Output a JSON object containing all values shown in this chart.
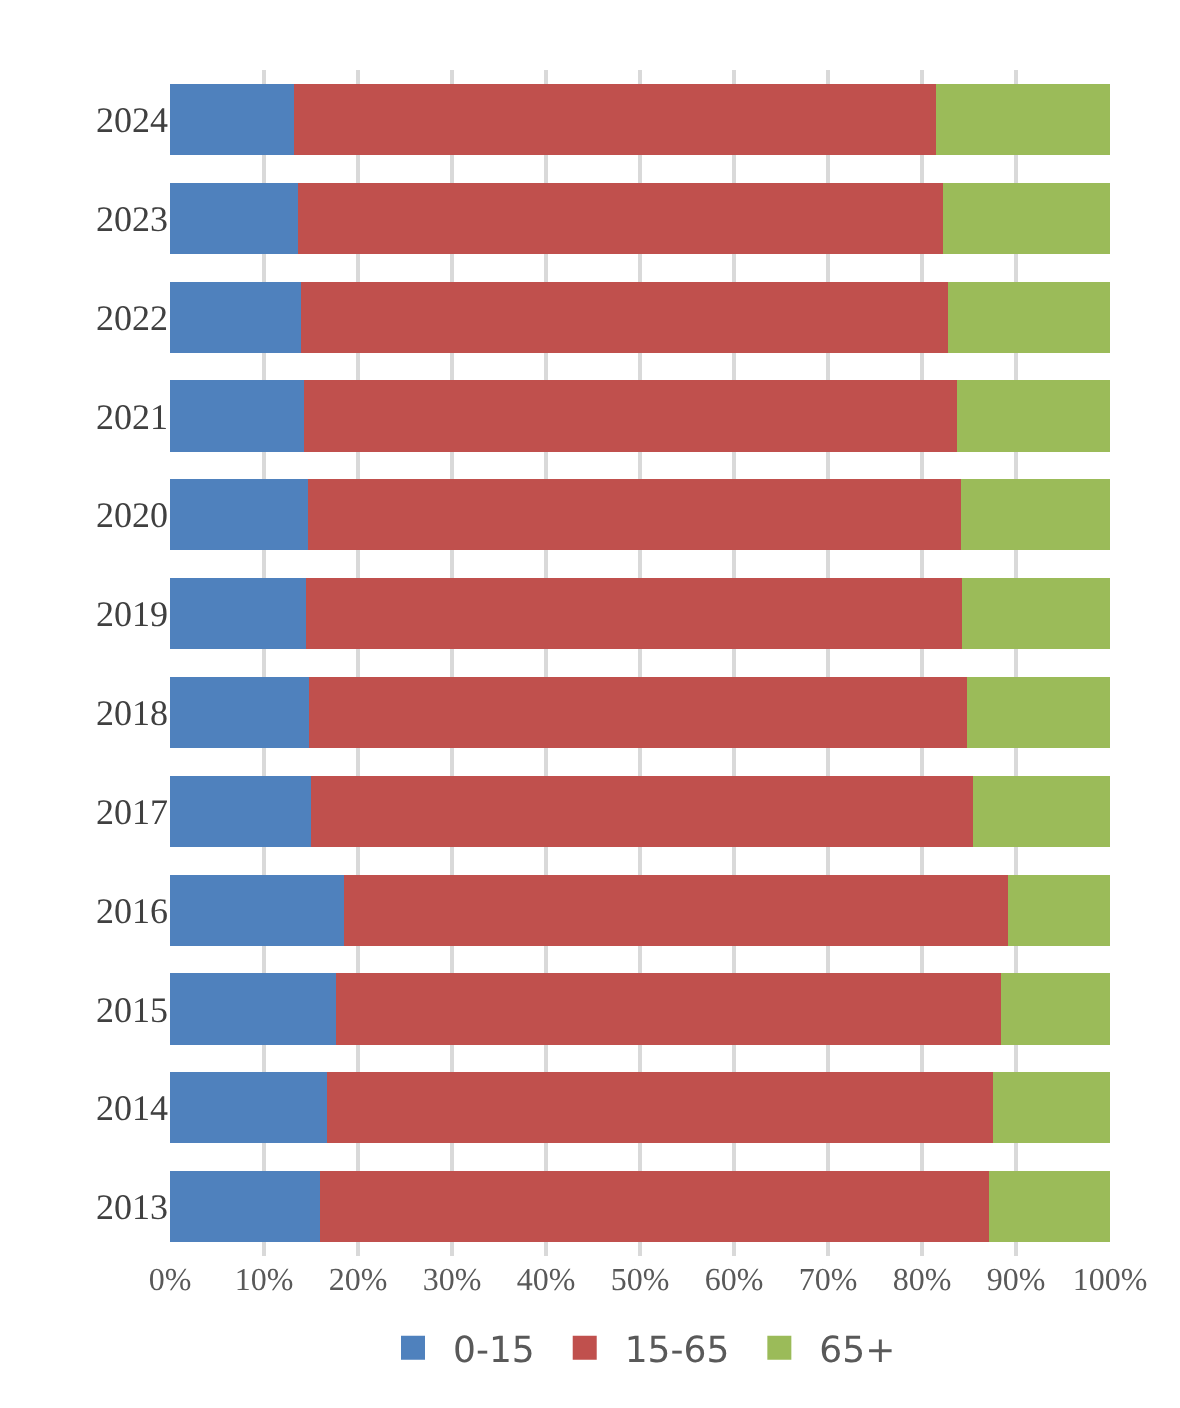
{
  "chart_data": {
    "type": "bar",
    "orientation": "horizontal",
    "stacked": true,
    "categories": [
      "2024",
      "2023",
      "2022",
      "2021",
      "2020",
      "2019",
      "2018",
      "2017",
      "2016",
      "2015",
      "2014",
      "2013"
    ],
    "series": [
      {
        "name": "0-15",
        "color": "#4f81bd",
        "values": [
          13.2,
          13.6,
          13.9,
          14.3,
          14.7,
          14.5,
          14.8,
          15.0,
          18.5,
          17.7,
          16.7,
          16.0
        ]
      },
      {
        "name": "15-65",
        "color": "#c0504d",
        "values": [
          68.3,
          68.6,
          68.9,
          69.4,
          69.4,
          69.8,
          70.0,
          70.4,
          70.6,
          70.7,
          70.9,
          71.1
        ]
      },
      {
        "name": "65+",
        "color": "#9bbb59",
        "values": [
          18.5,
          17.8,
          17.2,
          16.3,
          15.9,
          15.7,
          15.2,
          14.6,
          10.9,
          11.6,
          12.4,
          12.9
        ]
      }
    ],
    "xlim": [
      0,
      100
    ],
    "xticks": [
      {
        "value": 0,
        "label": "0%"
      },
      {
        "value": 10,
        "label": "10%"
      },
      {
        "value": 20,
        "label": "20%"
      },
      {
        "value": 30,
        "label": "30%"
      },
      {
        "value": 40,
        "label": "40%"
      },
      {
        "value": 50,
        "label": "50%"
      },
      {
        "value": 60,
        "label": "60%"
      },
      {
        "value": 70,
        "label": "70%"
      },
      {
        "value": 80,
        "label": "80%"
      },
      {
        "value": 90,
        "label": "90%"
      },
      {
        "value": 100,
        "label": "100%"
      }
    ],
    "grid": "x",
    "legend": "bottom"
  }
}
